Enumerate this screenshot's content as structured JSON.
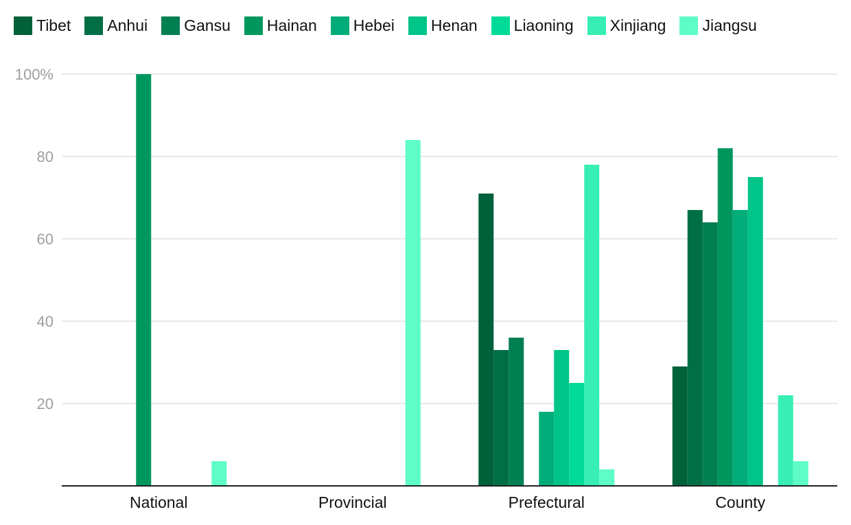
{
  "chart_data": {
    "type": "bar",
    "categories": [
      "National",
      "Provincial",
      "Prefectural",
      "County"
    ],
    "series": [
      {
        "name": "Tibet",
        "color": "#00613a",
        "values": [
          0,
          0,
          71,
          29
        ]
      },
      {
        "name": "Anhui",
        "color": "#006f45",
        "values": [
          0,
          0,
          33,
          67
        ]
      },
      {
        "name": "Gansu",
        "color": "#007f52",
        "values": [
          0,
          0,
          36,
          64
        ]
      },
      {
        "name": "Hainan",
        "color": "#00975f",
        "values": [
          100,
          0,
          0,
          82
        ]
      },
      {
        "name": "Hebei",
        "color": "#00ad79",
        "values": [
          0,
          0,
          18,
          67
        ]
      },
      {
        "name": "Henan",
        "color": "#00c488",
        "values": [
          0,
          0,
          33,
          75
        ]
      },
      {
        "name": "Liaoning",
        "color": "#00dc98",
        "values": [
          0,
          0,
          25,
          0
        ]
      },
      {
        "name": "Xinjiang",
        "color": "#37efb5",
        "values": [
          0,
          0,
          78,
          22
        ]
      },
      {
        "name": "Jiangsu",
        "color": "#5efdc8",
        "values": [
          6,
          84,
          4,
          6
        ]
      }
    ],
    "y_ticks": [
      "",
      "20",
      "40",
      "60",
      "80",
      "100%"
    ],
    "ylim": [
      0,
      100
    ],
    "xlabel": "",
    "ylabel": "",
    "grid": true,
    "legend_position": "top"
  }
}
